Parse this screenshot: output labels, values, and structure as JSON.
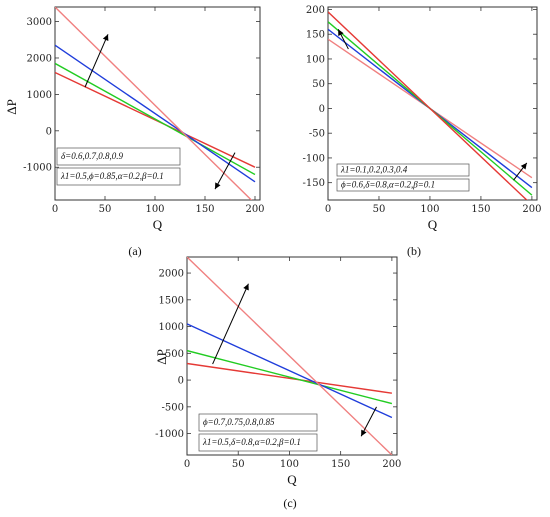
{
  "chart_data": [
    {
      "type": "line",
      "panel": "(a)",
      "xlabel": "Q",
      "ylabel": "ΔP",
      "xlim": [
        0,
        205
      ],
      "ylim": [
        -1900,
        3400
      ],
      "xticks": [
        0,
        50,
        100,
        150,
        200
      ],
      "yticks": [
        -1000,
        0,
        1000,
        2000,
        3000
      ],
      "annotations": [
        "δ=0.6,0.7,0.8,0.9",
        "λ1=0.5,ϕ=0.85,α=0.2,β=0.1"
      ],
      "series": [
        {
          "color": "#e53935",
          "x": [
            0,
            200
          ],
          "y": [
            1600,
            -1000
          ]
        },
        {
          "color": "#22cc22",
          "x": [
            0,
            200
          ],
          "y": [
            1850,
            -1200
          ]
        },
        {
          "color": "#1f3ddb",
          "x": [
            0,
            200
          ],
          "y": [
            2350,
            -1400
          ]
        },
        {
          "color": "#f08080",
          "x": [
            0,
            200
          ],
          "y": [
            3400,
            -2000
          ]
        }
      ],
      "arrows": [
        {
          "x1": 30,
          "y1": 1200,
          "x2": 53,
          "y2": 2650
        },
        {
          "x1": 180,
          "y1": -600,
          "x2": 160,
          "y2": -1600
        }
      ]
    },
    {
      "type": "line",
      "panel": "(b)",
      "xlabel": "Q",
      "ylabel": "",
      "xlim": [
        0,
        205
      ],
      "ylim": [
        -185,
        205
      ],
      "xticks": [
        0,
        50,
        100,
        150,
        200
      ],
      "yticks": [
        -150,
        -100,
        -50,
        0,
        50,
        100,
        150,
        200
      ],
      "annotations": [
        "λ1=0.1,0.2,0.3,0.4",
        "ϕ=0.6,δ=0.8,α=0.2,β=0.1"
      ],
      "series": [
        {
          "color": "#f08080",
          "x": [
            0,
            200
          ],
          "y": [
            140,
            -140
          ]
        },
        {
          "color": "#1f3ddb",
          "x": [
            0,
            200
          ],
          "y": [
            160,
            -160
          ]
        },
        {
          "color": "#22cc22",
          "x": [
            0,
            200
          ],
          "y": [
            175,
            -175
          ]
        },
        {
          "color": "#e53935",
          "x": [
            0,
            200
          ],
          "y": [
            195,
            -195
          ]
        }
      ],
      "arrows": [
        {
          "x1": 20,
          "y1": 120,
          "x2": 10,
          "y2": 160
        },
        {
          "x1": 182,
          "y1": -145,
          "x2": 195,
          "y2": -110
        }
      ]
    },
    {
      "type": "line",
      "panel": "(c)",
      "xlabel": "Q",
      "ylabel": "ΔP",
      "xlim": [
        0,
        205
      ],
      "ylim": [
        -1400,
        2300
      ],
      "xticks": [
        0,
        50,
        100,
        150,
        200
      ],
      "yticks": [
        -1000,
        -500,
        0,
        500,
        1000,
        1500,
        2000
      ],
      "annotations": [
        "ϕ=0.7,0.75,0.8,0.85",
        "λ1=0.5,δ=0.8,α=0.2,β=0.1"
      ],
      "series": [
        {
          "color": "#e53935",
          "x": [
            0,
            200
          ],
          "y": [
            310,
            -245
          ]
        },
        {
          "color": "#22cc22",
          "x": [
            0,
            200
          ],
          "y": [
            550,
            -440
          ]
        },
        {
          "color": "#1f3ddb",
          "x": [
            0,
            200
          ],
          "y": [
            1050,
            -700
          ]
        },
        {
          "color": "#f08080",
          "x": [
            0,
            200
          ],
          "y": [
            2300,
            -1400
          ]
        }
      ],
      "arrows": [
        {
          "x1": 25,
          "y1": 300,
          "x2": 60,
          "y2": 1800
        },
        {
          "x1": 185,
          "y1": -500,
          "x2": 170,
          "y2": -1050
        }
      ]
    }
  ]
}
